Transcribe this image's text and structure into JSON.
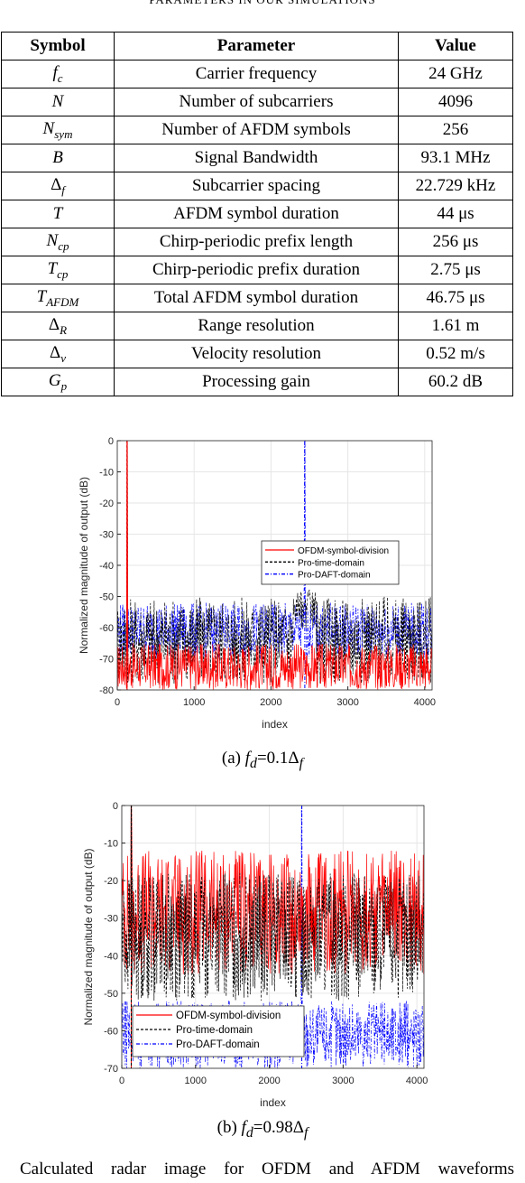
{
  "table_caption": "PARAMETERS IN OUR SIMULATIONS",
  "table": {
    "headers": [
      "Symbol",
      "Parameter",
      "Value"
    ],
    "rows": [
      {
        "sym": "f",
        "sub": "c",
        "param": "Carrier frequency",
        "value": "24 GHz"
      },
      {
        "sym": "N",
        "sub": "",
        "param": "Number of subcarriers",
        "value": "4096"
      },
      {
        "sym": "N",
        "sub": "sym",
        "param": "Number of AFDM symbols",
        "value": "256"
      },
      {
        "sym": "B",
        "sub": "",
        "param": "Signal Bandwidth",
        "value": "93.1 MHz"
      },
      {
        "sym": "Δ",
        "sub": "f",
        "param": "Subcarrier spacing",
        "value": "22.729 kHz"
      },
      {
        "sym": "T",
        "sub": "",
        "param": "AFDM symbol duration",
        "value": "44 μs"
      },
      {
        "sym": "N",
        "sub": "cp",
        "param": "Chirp-periodic prefix length",
        "value": "256 μs"
      },
      {
        "sym": "T",
        "sub": "cp",
        "param": "Chirp-periodic prefix duration",
        "value": "2.75 μs"
      },
      {
        "sym": "T",
        "sub": "AFDM",
        "param": "Total AFDM symbol duration",
        "value": "46.75 μs"
      },
      {
        "sym": "Δ",
        "sub": "R",
        "param": "Range resolution",
        "value": "1.61 m"
      },
      {
        "sym": "Δ",
        "sub": "v",
        "param": "Velocity resolution",
        "value": "0.52 m/s"
      },
      {
        "sym": "G",
        "sub": "p",
        "param": "Processing gain",
        "value": "60.2 dB"
      }
    ]
  },
  "chart_data": [
    {
      "type": "line",
      "xlabel": "index",
      "ylabel": "Normalized magnitude of output (dB)",
      "xlim": [
        0,
        4096
      ],
      "ylim": [
        -80,
        0
      ],
      "xticks": [
        "0",
        "1000",
        "2000",
        "3000",
        "4000"
      ],
      "yticks": [
        "0",
        "-10",
        "-20",
        "-30",
        "-40",
        "-50",
        "-60",
        "-70",
        "-80"
      ],
      "legend": "middle-right",
      "series": [
        {
          "name": "OFDM-symbol-division",
          "color": "#ff0000",
          "style": "solid",
          "peak_index": 128,
          "noise_range": [
            -80,
            -65
          ]
        },
        {
          "name": "Pro-time-domain",
          "color": "#000000",
          "style": "dashed",
          "peak_index": 128,
          "noise_range": [
            -78,
            -50
          ]
        },
        {
          "name": "Pro-DAFT-domain",
          "color": "#0000ff",
          "style": "dashdot",
          "peak_index": 2440,
          "noise_range": [
            -70,
            -52
          ]
        }
      ],
      "subcaption_label": "(a)",
      "subcaption_value": "=0.1Δ"
    },
    {
      "type": "line",
      "xlabel": "index",
      "ylabel": "Normalized magnitude of output (dB)",
      "xlim": [
        0,
        4096
      ],
      "ylim": [
        -70,
        0
      ],
      "xticks": [
        "0",
        "1000",
        "2000",
        "3000",
        "4000"
      ],
      "yticks": [
        "0",
        "-10",
        "-20",
        "-30",
        "-40",
        "-50",
        "-60",
        "-70"
      ],
      "legend": "bottom-left",
      "series": [
        {
          "name": "OFDM-symbol-division",
          "color": "#ff0000",
          "style": "solid",
          "peak_index": 128,
          "noise_range": [
            -45,
            -12
          ]
        },
        {
          "name": "Pro-time-domain",
          "color": "#000000",
          "style": "dashed",
          "peak_index": 128,
          "noise_range": [
            -52,
            -18
          ]
        },
        {
          "name": "Pro-DAFT-domain",
          "color": "#0000ff",
          "style": "dashdot",
          "peak_index": 2440,
          "noise_range": [
            -70,
            -52
          ]
        }
      ],
      "subcaption_label": "(b)",
      "subcaption_value": "=0.98Δ"
    }
  ],
  "bottom_text": "Calculated radar image for OFDM and AFDM waveforms"
}
